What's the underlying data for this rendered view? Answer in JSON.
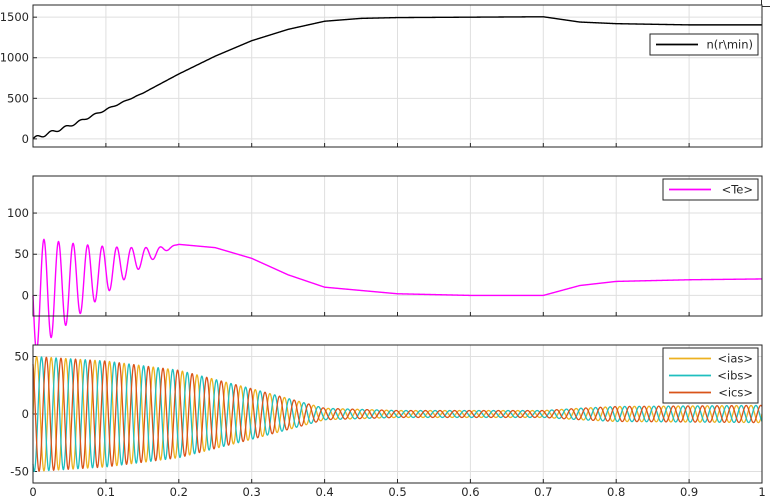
{
  "chart_data": [
    {
      "type": "line",
      "xlim": [
        0,
        1
      ],
      "ylim": [
        -100,
        1650
      ],
      "yticks": [
        0,
        500,
        1000,
        1500
      ],
      "grid": true,
      "legend_position": "right",
      "series": [
        {
          "name": "n(r\\min)",
          "color": "#000000",
          "points": [
            [
              0,
              0
            ],
            [
              0.05,
              160
            ],
            [
              0.1,
              360
            ],
            [
              0.15,
              560
            ],
            [
              0.2,
              800
            ],
            [
              0.25,
              1020
            ],
            [
              0.3,
              1210
            ],
            [
              0.35,
              1350
            ],
            [
              0.4,
              1450
            ],
            [
              0.45,
              1485
            ],
            [
              0.5,
              1495
            ],
            [
              0.6,
              1500
            ],
            [
              0.7,
              1505
            ],
            [
              0.75,
              1440
            ],
            [
              0.8,
              1420
            ],
            [
              0.9,
              1405
            ],
            [
              1.0,
              1405
            ]
          ]
        }
      ]
    },
    {
      "type": "line",
      "xlim": [
        0,
        1
      ],
      "ylim": [
        -25,
        145
      ],
      "yticks": [
        0,
        50,
        100
      ],
      "grid": true,
      "legend_position": "top-right",
      "series": [
        {
          "name": "<Te>",
          "color": "#ff00ff",
          "points": [
            [
              0,
              0
            ],
            [
              0.2,
              62
            ],
            [
              0.25,
              58
            ],
            [
              0.3,
              45
            ],
            [
              0.35,
              25
            ],
            [
              0.4,
              10
            ],
            [
              0.5,
              2
            ],
            [
              0.6,
              0
            ],
            [
              0.7,
              0
            ],
            [
              0.75,
              12
            ],
            [
              0.8,
              17
            ],
            [
              0.9,
              19
            ],
            [
              1.0,
              20
            ]
          ],
          "oscillation": {
            "start_amplitude": 70,
            "decay_end": 0.2,
            "frequency_hz": 50
          }
        }
      ]
    },
    {
      "type": "line",
      "xlim": [
        0,
        1
      ],
      "ylim": [
        -60,
        60
      ],
      "yticks": [
        -50,
        0,
        50
      ],
      "xticks": [
        0,
        0.1,
        0.2,
        0.3,
        0.4,
        0.5,
        0.6,
        0.7,
        0.8,
        0.9,
        1
      ],
      "grid": true,
      "legend_position": "top-right",
      "frequency_hz": 50,
      "envelope": [
        [
          0,
          50
        ],
        [
          0.1,
          46
        ],
        [
          0.2,
          38
        ],
        [
          0.3,
          22
        ],
        [
          0.4,
          5
        ],
        [
          0.5,
          3
        ],
        [
          0.6,
          3
        ],
        [
          0.7,
          3
        ],
        [
          0.75,
          5
        ],
        [
          0.8,
          6.5
        ],
        [
          0.9,
          7
        ],
        [
          1.0,
          7.5
        ]
      ],
      "series": [
        {
          "name": "<ias>",
          "color": "#edb120",
          "phase_deg": 0
        },
        {
          "name": "<ibs>",
          "color": "#1fbfbf",
          "phase_deg": -120
        },
        {
          "name": "<ics>",
          "color": "#d95319",
          "phase_deg": 120
        }
      ]
    }
  ]
}
